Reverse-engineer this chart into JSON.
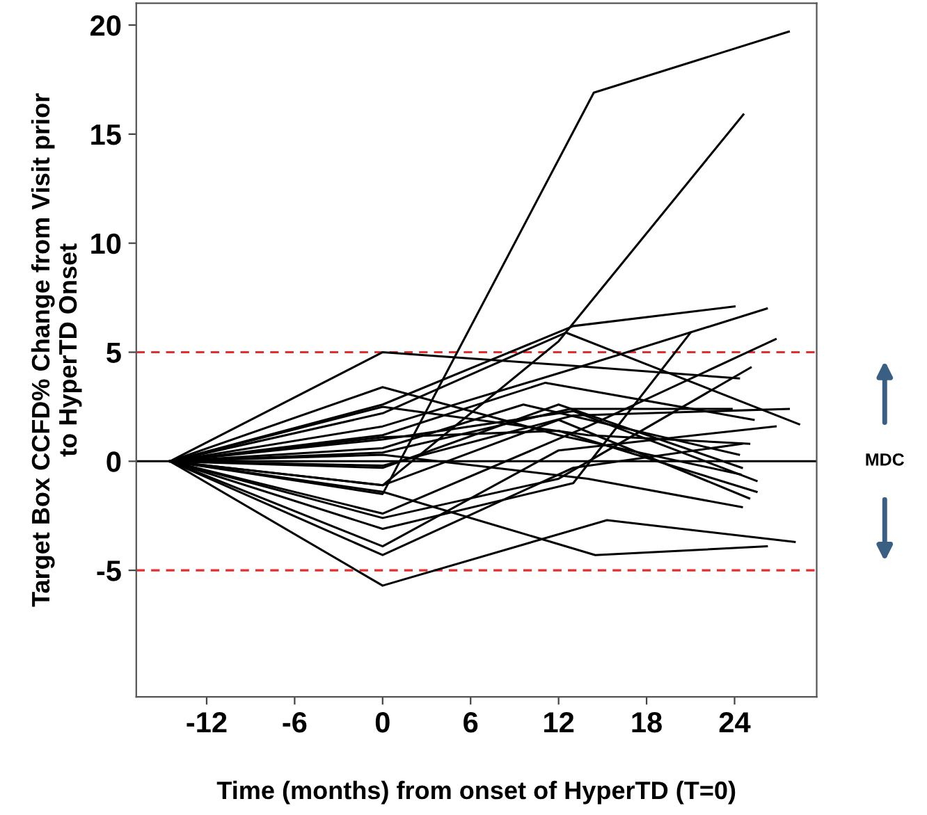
{
  "chart_data": {
    "type": "line",
    "xlabel": "Time (months) from onset of HyperTD (T=0)",
    "ylabel": "Target Box CCFD% Change from Visit prior\nto HyperTD Onset",
    "xlim": [
      -16.8,
      29.6
    ],
    "ylim": [
      -10.8,
      21
    ],
    "xticks": [
      -12,
      -6,
      0,
      6,
      12,
      18,
      24
    ],
    "yticks": [
      -5,
      0,
      5,
      10,
      15,
      20
    ],
    "grid": false,
    "marker": "none",
    "line_style": "solid",
    "ref_lines": [
      {
        "axis": "y",
        "value": 5,
        "color": "#e03030",
        "line_style": "dashed"
      },
      {
        "axis": "y",
        "value": -5,
        "color": "#e03030",
        "line_style": "dashed"
      },
      {
        "axis": "y",
        "value": 0,
        "color": "#000000",
        "line_style": "solid"
      }
    ],
    "annotations": [
      "MDC"
    ],
    "series": [
      {
        "color": "#000000",
        "x": [
          -14.5,
          0,
          14.4,
          27.7
        ],
        "values": [
          0,
          -1.5,
          16.9,
          19.7
        ]
      },
      {
        "color": "#000000",
        "x": [
          -14.5,
          0,
          12,
          24.6
        ],
        "values": [
          0,
          -1.1,
          5.5,
          15.9
        ]
      },
      {
        "color": "#000000",
        "x": [
          -14.5,
          0,
          12.5,
          24.3
        ],
        "values": [
          0,
          5.0,
          4.4,
          3.8
        ]
      },
      {
        "color": "#000000",
        "x": [
          -14.5,
          0,
          12,
          24.4
        ],
        "values": [
          0,
          3.4,
          1.2,
          -0.6
        ]
      },
      {
        "color": "#000000",
        "x": [
          -14.5,
          0,
          13,
          24
        ],
        "values": [
          0,
          2.6,
          6.2,
          7.1
        ]
      },
      {
        "color": "#000000",
        "x": [
          -14.5,
          0,
          12.5,
          28.4
        ],
        "values": [
          0,
          2.2,
          5.9,
          1.7
        ]
      },
      {
        "color": "#000000",
        "x": [
          -14.5,
          0,
          13.8,
          26.2
        ],
        "values": [
          0,
          1.6,
          4.4,
          7.0
        ]
      },
      {
        "color": "#000000",
        "x": [
          -14.5,
          0,
          11.1,
          25.3
        ],
        "values": [
          0,
          1.2,
          3.6,
          1.9
        ]
      },
      {
        "color": "#000000",
        "x": [
          -14.5,
          0,
          9.6,
          24.3
        ],
        "values": [
          0,
          0.6,
          2.6,
          0.3
        ]
      },
      {
        "color": "#000000",
        "x": [
          -14.5,
          0,
          12.8,
          23.8
        ],
        "values": [
          0,
          0.4,
          2.4,
          2.4
        ]
      },
      {
        "color": "#000000",
        "x": [
          -14.5,
          0,
          13,
          27.7
        ],
        "values": [
          0,
          -0.2,
          2.1,
          2.4
        ]
      },
      {
        "color": "#000000",
        "x": [
          -14.5,
          0,
          14,
          26.8
        ],
        "values": [
          0,
          -2.4,
          1.6,
          5.6
        ]
      },
      {
        "color": "#000000",
        "x": [
          -14.5,
          0,
          12,
          25.1
        ],
        "values": [
          0,
          -2.6,
          -0.8,
          4.3
        ]
      },
      {
        "color": "#000000",
        "x": [
          -14.5,
          0,
          13,
          21
        ],
        "values": [
          0,
          -3.1,
          -1.0,
          5.9
        ]
      },
      {
        "color": "#000000",
        "x": [
          -14.5,
          0,
          12,
          26.8
        ],
        "values": [
          0,
          -3.9,
          0.5,
          1.6
        ]
      },
      {
        "color": "#000000",
        "x": [
          -14.5,
          0,
          13,
          24.5
        ],
        "values": [
          0,
          -4.3,
          -0.3,
          0.8
        ]
      },
      {
        "color": "#000000",
        "x": [
          -14.5,
          0,
          15.3,
          28.1
        ],
        "values": [
          0,
          -5.7,
          -2.7,
          -3.7
        ]
      },
      {
        "color": "#000000",
        "x": [
          -14.5,
          0,
          14.5,
          26.2
        ],
        "values": [
          0,
          -1.4,
          -4.3,
          -3.9
        ]
      },
      {
        "color": "#000000",
        "x": [
          -14.5,
          0,
          13,
          25.5
        ],
        "values": [
          0,
          1.0,
          2.3,
          -0.9
        ]
      },
      {
        "color": "#000000",
        "x": [
          -14.5,
          0,
          12,
          25.5
        ],
        "values": [
          0,
          1.1,
          1.4,
          -1.4
        ]
      },
      {
        "color": "#000000",
        "x": [
          -14.5,
          0,
          12,
          25
        ],
        "values": [
          0,
          -1.1,
          1.9,
          -1.7
        ]
      },
      {
        "color": "#000000",
        "x": [
          -14.5,
          0,
          14,
          24.5
        ],
        "values": [
          0,
          0.3,
          -0.8,
          -2.1
        ]
      },
      {
        "color": "#000000",
        "x": [
          -14.5,
          0,
          12,
          24.5
        ],
        "values": [
          0,
          -0.3,
          2.6,
          -0.3
        ]
      },
      {
        "color": "#000000",
        "x": [
          -14.5,
          0,
          14,
          25
        ],
        "values": [
          0,
          2.5,
          1.2,
          0.8
        ]
      }
    ]
  }
}
